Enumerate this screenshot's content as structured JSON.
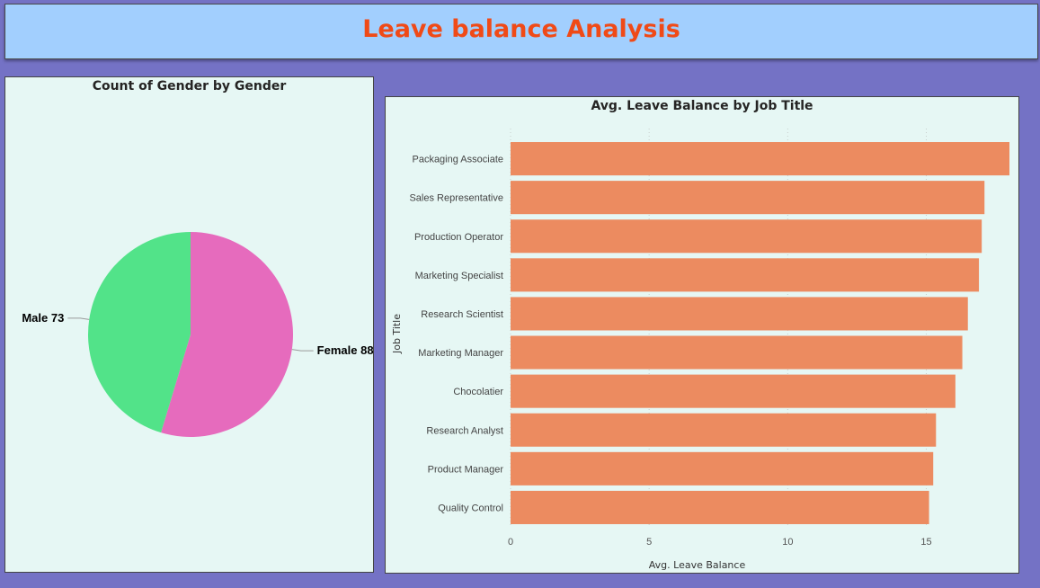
{
  "header": {
    "title": "Leave balance Analysis"
  },
  "chart_data": [
    {
      "type": "pie",
      "title": "Count of Gender by Gender",
      "slices": [
        {
          "label": "Female",
          "value": 88,
          "display": "Female 88",
          "color": "#e66bbd"
        },
        {
          "label": "Male",
          "value": 73,
          "display": "Male 73",
          "color": "#52e389"
        }
      ]
    },
    {
      "type": "bar",
      "orientation": "horizontal",
      "title": "Avg. Leave Balance by Job Title",
      "xlabel": "Avg. Leave Balance",
      "ylabel": "Job Title",
      "xlim": [
        0,
        18
      ],
      "xticks": [
        0,
        5,
        10,
        15
      ],
      "bar_color": "#ec8b60",
      "categories": [
        "Packaging Associate",
        "Sales Representative",
        "Production Operator",
        "Marketing Specialist",
        "Research Scientist",
        "Marketing Manager",
        "Chocolatier",
        "Research Analyst",
        "Product Manager",
        "Quality Control"
      ],
      "values": [
        18.0,
        17.1,
        17.0,
        16.9,
        16.5,
        16.3,
        16.05,
        15.35,
        15.25,
        15.1
      ]
    }
  ]
}
